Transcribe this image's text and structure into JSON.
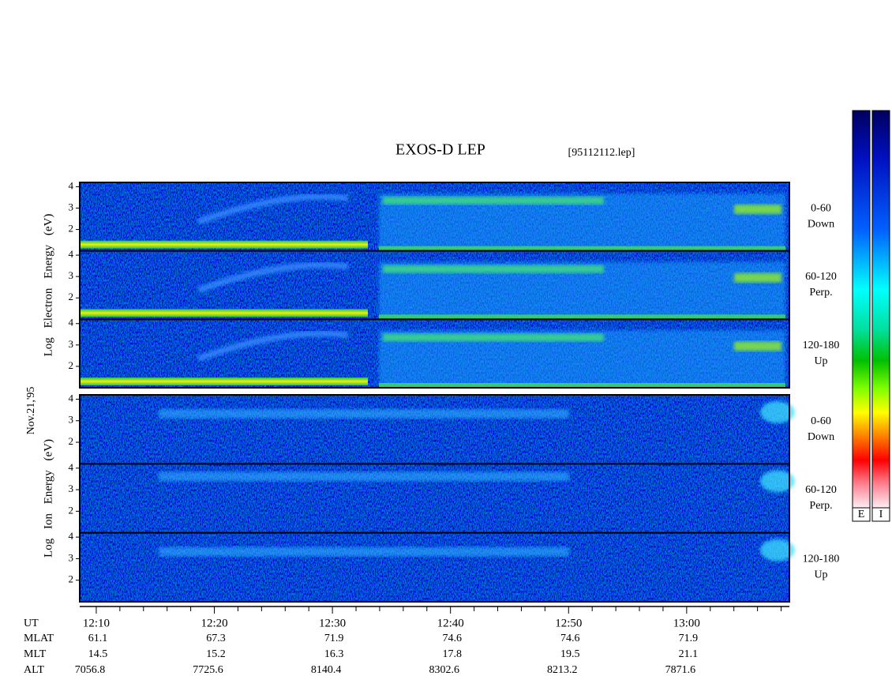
{
  "chart_data": {
    "type": "spectrogram",
    "title": "EXOS-D LEP",
    "file": "[95112112.lep]",
    "date": "Nov.21,'95",
    "ylim": [
      1,
      4.2
    ],
    "yticks": [
      2,
      3,
      4
    ],
    "groups": [
      {
        "ylabel": "Log  Electron  Energy (eV)",
        "panels": [
          {
            "label": [
              "0-60",
              "Down"
            ]
          },
          {
            "label": [
              "60-120",
              "Perp."
            ]
          },
          {
            "label": [
              "120-180",
              "Up"
            ]
          }
        ]
      },
      {
        "ylabel": "Log  Ion  Energy (eV)",
        "panels": [
          {
            "label": [
              "0-60",
              "Down"
            ]
          },
          {
            "label": [
              "60-120",
              "Perp."
            ]
          },
          {
            "label": [
              "120-180",
              "Up"
            ]
          }
        ]
      }
    ],
    "xlim": [
      728.6,
      788.7
    ],
    "xticks": [
      {
        "value": 730,
        "label": "12:10"
      },
      {
        "value": 740,
        "label": "12:20"
      },
      {
        "value": 750,
        "label": "12:30"
      },
      {
        "value": 760,
        "label": "12:40"
      },
      {
        "value": 770,
        "label": "12:50"
      },
      {
        "value": 780,
        "label": "13:00"
      }
    ],
    "xminorticks": [
      732,
      734,
      736,
      738,
      742,
      744,
      746,
      748,
      752,
      754,
      756,
      758,
      762,
      764,
      766,
      768,
      772,
      774,
      776,
      778,
      782,
      784,
      786,
      788
    ],
    "ephemeris": {
      "labels": [
        "UT",
        "MLAT",
        "MLT",
        "ALT"
      ],
      "rows": [
        [
          61.1,
          67.3,
          71.9,
          74.6,
          74.6,
          71.9
        ],
        [
          14.5,
          15.2,
          16.3,
          17.8,
          19.5,
          21.1
        ],
        [
          7056.8,
          7725.6,
          8140.4,
          8302.6,
          8213.2,
          7871.6
        ]
      ]
    },
    "colorbars": [
      "E",
      "I"
    ]
  }
}
